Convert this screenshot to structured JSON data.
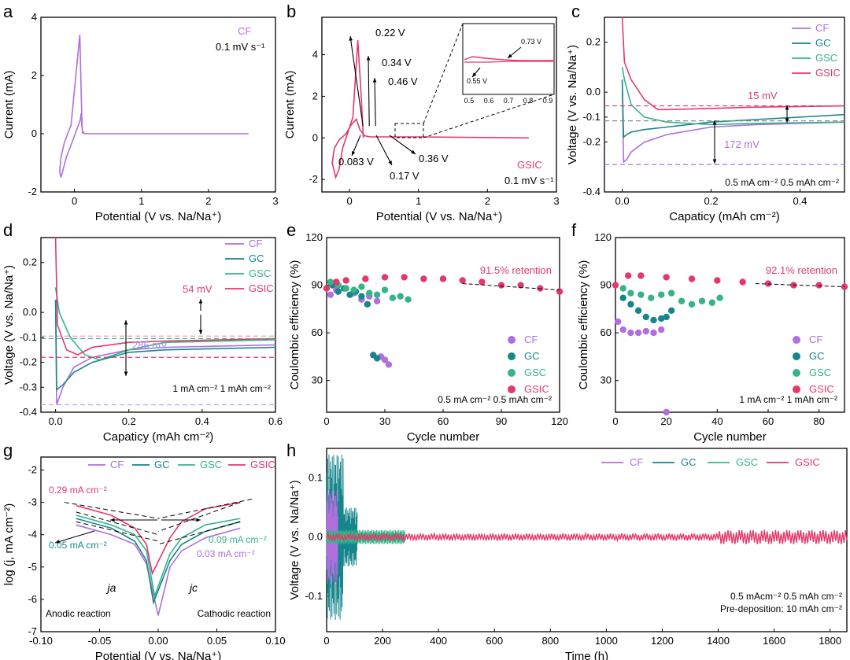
{
  "colors": {
    "CF": "#b06ee0",
    "GC": "#16868c",
    "GSC": "#35b488",
    "GSIC": "#e5386a",
    "axis": "#000000",
    "dash": "#000000"
  },
  "chart_data": [
    {
      "panel": "a",
      "type": "line",
      "legend": {
        "label": "CF",
        "rate": "0.1 mV s⁻¹"
      },
      "xlabel": "Potential (V vs. Na/Na⁺)",
      "ylabel": "Current (mA)",
      "xlim": [
        -0.5,
        3
      ],
      "ylim": [
        -2,
        4
      ],
      "xticks": [
        "0",
        "1",
        "2",
        "3"
      ],
      "yticks": [
        "-2",
        "0",
        "2",
        "4"
      ],
      "series": [
        {
          "name": "CF",
          "x": [
            0.12,
            0.11,
            0.1,
            0.08,
            -0.05,
            -0.15,
            -0.2,
            -0.22,
            -0.2,
            -0.12,
            -0.02,
            0.06,
            0.09,
            0.1,
            0.11,
            0.12,
            0.15,
            0.3,
            1,
            2,
            2.6
          ],
          "y": [
            0,
            0.6,
            1.5,
            3.4,
            0.3,
            -0.3,
            -0.8,
            -1.3,
            -1.5,
            -0.8,
            -0.2,
            0.3,
            0.5,
            0.7,
            0.3,
            0.1,
            0,
            0,
            0,
            0,
            0
          ]
        }
      ]
    },
    {
      "panel": "b",
      "type": "line",
      "legend": {
        "label": "GSIC",
        "rate": "0.1 mV s⁻¹"
      },
      "xlabel": "Potential (V vs. Na/Na⁺)",
      "ylabel": "Current (mA)",
      "xlim": [
        -0.4,
        3
      ],
      "ylim": [
        -2.6,
        5.8
      ],
      "xticks": [
        "0",
        "1",
        "2",
        "3"
      ],
      "yticks": [
        "-2",
        "0",
        "2",
        "4"
      ],
      "annotations": [
        "0.22 V",
        "0.34 V",
        "0.46 V",
        "0.083 V",
        "0.17 V",
        "0.36 V"
      ],
      "inset": {
        "xticks": [
          "0.5",
          "0.6",
          "0.7",
          "0.8",
          "0.9"
        ],
        "labels": [
          "0.73 V",
          "0.55 V"
        ]
      },
      "series": [
        {
          "name": "GSIC",
          "x": [
            0.2,
            0.17,
            0.12,
            0.05,
            -0.05,
            -0.1,
            -0.15,
            -0.2,
            -0.25,
            -0.22,
            -0.15,
            -0.05,
            0.02,
            0.1,
            0.15,
            0.22,
            0.3,
            1,
            2,
            2.6
          ],
          "y": [
            0,
            2,
            4.7,
            1,
            0,
            -0.5,
            -1.5,
            -1.9,
            -1.2,
            -0.5,
            -0.1,
            0.2,
            0.6,
            0.9,
            0.4,
            0.1,
            0.05,
            0.05,
            0.02,
            0
          ]
        }
      ]
    },
    {
      "panel": "c",
      "type": "line",
      "xlabel": "Capaticy (mAh cm⁻²)",
      "ylabel": "Voltage (V vs. Na/Na⁺)",
      "xlim": [
        -0.04,
        0.5
      ],
      "ylim": [
        -0.4,
        0.3
      ],
      "xticks": [
        "0.0",
        "0.2",
        "0.4"
      ],
      "yticks": [
        "-0.4",
        "-0.2",
        "-0.1",
        "0.0",
        "0.2"
      ],
      "legend": [
        "CF",
        "GC",
        "GSC",
        "GSIC"
      ],
      "annotations": [
        "15 mV",
        "172 mV"
      ],
      "conditions": "0.5 mA cm⁻² 0.5 mAh cm⁻²",
      "series": [
        {
          "name": "CF",
          "x": [
            0,
            0.003,
            0.01,
            0.02,
            0.05,
            0.1,
            0.2,
            0.3,
            0.5
          ],
          "y": [
            0.05,
            -0.28,
            -0.27,
            -0.24,
            -0.2,
            -0.17,
            -0.14,
            -0.13,
            -0.12
          ]
        },
        {
          "name": "GC",
          "x": [
            0,
            0.003,
            0.01,
            0.02,
            0.05,
            0.1,
            0.2,
            0.3,
            0.5
          ],
          "y": [
            0.05,
            -0.18,
            -0.17,
            -0.16,
            -0.15,
            -0.14,
            -0.12,
            -0.11,
            -0.09
          ]
        },
        {
          "name": "GSC",
          "x": [
            0,
            0.005,
            0.02,
            0.05,
            0.1,
            0.2,
            0.3,
            0.5
          ],
          "y": [
            0.1,
            0.05,
            -0.05,
            -0.1,
            -0.12,
            -0.13,
            -0.125,
            -0.12
          ]
        },
        {
          "name": "GSIC",
          "x": [
            0,
            0.005,
            0.02,
            0.05,
            0.08,
            0.1,
            0.2,
            0.3,
            0.5
          ],
          "y": [
            0.3,
            0.12,
            0.05,
            -0.03,
            -0.07,
            -0.07,
            -0.065,
            -0.06,
            -0.055
          ]
        }
      ]
    },
    {
      "panel": "d",
      "type": "line",
      "xlabel": "Capaticy (mAh cm⁻²)",
      "ylabel": "Voltage (V vs. Na/Na⁺)",
      "xlim": [
        -0.04,
        0.6
      ],
      "ylim": [
        -0.4,
        0.3
      ],
      "xticks": [
        "0.0",
        "0.2",
        "0.4",
        "0.6"
      ],
      "yticks": [
        "-0.4",
        "-0.3",
        "-0.2",
        "-0.1",
        "0.0",
        "0.2"
      ],
      "legend": [
        "CF",
        "GC",
        "GSC",
        "GSIC"
      ],
      "annotations": [
        "54 mV",
        "286 mV"
      ],
      "conditions": "1 mA cm⁻² 1 mAh cm⁻²",
      "series": [
        {
          "name": "CF",
          "x": [
            0,
            0.003,
            0.02,
            0.05,
            0.1,
            0.2,
            0.3,
            0.6
          ],
          "y": [
            0.05,
            -0.37,
            -0.3,
            -0.22,
            -0.18,
            -0.15,
            -0.14,
            -0.13
          ]
        },
        {
          "name": "GC",
          "x": [
            0,
            0.003,
            0.02,
            0.05,
            0.1,
            0.2,
            0.3,
            0.6
          ],
          "y": [
            0.05,
            -0.31,
            -0.29,
            -0.24,
            -0.2,
            -0.16,
            -0.15,
            -0.14
          ]
        },
        {
          "name": "GSC",
          "x": [
            0,
            0.01,
            0.04,
            0.08,
            0.12,
            0.2,
            0.3,
            0.6
          ],
          "y": [
            0.1,
            0.0,
            -0.1,
            -0.17,
            -0.19,
            -0.15,
            -0.12,
            -0.11
          ]
        },
        {
          "name": "GSIC",
          "x": [
            0,
            0.005,
            0.03,
            0.06,
            0.1,
            0.2,
            0.3,
            0.6
          ],
          "y": [
            0.3,
            -0.05,
            -0.15,
            -0.17,
            -0.14,
            -0.12,
            -0.115,
            -0.105
          ]
        }
      ]
    },
    {
      "panel": "e",
      "type": "scatter",
      "xlabel": "Cycle number",
      "ylabel": "Coulombic efficiency (%)",
      "xlim": [
        0,
        120
      ],
      "ylim": [
        10,
        120
      ],
      "xticks": [
        "0",
        "30",
        "60",
        "90",
        "120"
      ],
      "yticks": [
        "30",
        "60",
        "90",
        "120"
      ],
      "legend": [
        "CF",
        "GC",
        "GSC",
        "GSIC"
      ],
      "annotations": [
        "91.5% retention"
      ],
      "conditions": "0.5 mA cm⁻² 0.5 mAh cm⁻²",
      "series": [
        {
          "name": "CF",
          "x": [
            2,
            5,
            10,
            14,
            18,
            22,
            26,
            28,
            30,
            32
          ],
          "y": [
            84,
            87,
            88,
            85,
            81,
            83,
            80,
            45,
            43,
            40
          ]
        },
        {
          "name": "GC",
          "x": [
            3,
            6,
            9,
            12,
            15,
            18,
            21,
            24,
            26
          ],
          "y": [
            90,
            86,
            88,
            84,
            86,
            83,
            78,
            46,
            44
          ]
        },
        {
          "name": "GSC",
          "x": [
            2,
            6,
            10,
            14,
            18,
            22,
            26,
            30,
            34,
            38,
            42
          ],
          "y": [
            92,
            90,
            88,
            87,
            89,
            85,
            84,
            87,
            82,
            83,
            81
          ]
        },
        {
          "name": "GSIC",
          "x": [
            0,
            5,
            10,
            20,
            30,
            40,
            50,
            60,
            70,
            80,
            90,
            100,
            110,
            120
          ],
          "y": [
            88,
            92,
            93,
            94,
            95,
            95,
            94,
            94,
            93,
            92,
            90,
            90,
            88,
            86
          ]
        }
      ]
    },
    {
      "panel": "f",
      "type": "scatter",
      "xlabel": "Cycle number",
      "ylabel": "Coulombic efficiency (%)",
      "xlim": [
        0,
        90
      ],
      "ylim": [
        10,
        120
      ],
      "xticks": [
        "0",
        "20",
        "40",
        "60",
        "80"
      ],
      "yticks": [
        "30",
        "60",
        "90",
        "120"
      ],
      "legend": [
        "CF",
        "GC",
        "GSC",
        "GSIC"
      ],
      "annotations": [
        "92.1% retention"
      ],
      "conditions": "1 mA cm⁻² 1 mAh cm⁻²",
      "series": [
        {
          "name": "CF",
          "x": [
            1,
            3,
            6,
            9,
            12,
            15,
            18,
            20
          ],
          "y": [
            67,
            62,
            60,
            60,
            61,
            60,
            62,
            10
          ]
        },
        {
          "name": "GC",
          "x": [
            3,
            6,
            9,
            12,
            15,
            18,
            20,
            22
          ],
          "y": [
            82,
            78,
            74,
            70,
            68,
            69,
            70,
            74
          ]
        },
        {
          "name": "GSC",
          "x": [
            3,
            6,
            10,
            14,
            18,
            22,
            26,
            30,
            34,
            38,
            41
          ],
          "y": [
            88,
            85,
            84,
            82,
            84,
            85,
            80,
            78,
            80,
            79,
            82
          ]
        },
        {
          "name": "GSIC",
          "x": [
            0,
            5,
            10,
            20,
            30,
            40,
            50,
            60,
            70,
            80,
            90
          ],
          "y": [
            90,
            96,
            96,
            95,
            94,
            93,
            92,
            91,
            90,
            90,
            89
          ]
        }
      ]
    },
    {
      "panel": "g",
      "type": "line",
      "xlabel": "Potential (V vs. Na/Na⁺)",
      "ylabel": "log (j, mA cm⁻²)",
      "xlim": [
        -0.1,
        0.1
      ],
      "ylim": [
        -7,
        -1.6
      ],
      "xticks": [
        "-0.10",
        "-0.05",
        "0.00",
        "0.05",
        "0.10"
      ],
      "yticks": [
        "-7",
        "-6",
        "-5",
        "-4",
        "-3",
        "-2"
      ],
      "legend": [
        "CF",
        "GC",
        "GSC",
        "GSIC"
      ],
      "annotations": [
        "0.29 mA cm⁻²",
        "0.05 mA cm⁻²",
        "0.09 mA cm⁻²",
        "0.03 mA cm⁻²",
        "ja",
        "jc",
        "Anodic reaction",
        "Cathodic reaction"
      ],
      "series": [
        {
          "name": "CF",
          "x": [
            -0.07,
            -0.04,
            -0.02,
            -0.01,
            0,
            0.01,
            0.02,
            0.04,
            0.07
          ],
          "y": [
            -3.7,
            -4.0,
            -4.3,
            -4.9,
            -6.5,
            -5.0,
            -4.5,
            -4.1,
            -3.8
          ]
        },
        {
          "name": "GC",
          "x": [
            -0.07,
            -0.04,
            -0.02,
            -0.01,
            -0.004,
            0.01,
            0.02,
            0.04,
            0.07
          ],
          "y": [
            -3.5,
            -3.8,
            -4.2,
            -4.8,
            -6.1,
            -4.8,
            -4.3,
            -3.9,
            -3.6
          ]
        },
        {
          "name": "GSC",
          "x": [
            -0.07,
            -0.04,
            -0.02,
            -0.01,
            -0.003,
            0.01,
            0.02,
            0.04,
            0.07
          ],
          "y": [
            -3.4,
            -3.7,
            -4.0,
            -4.5,
            -5.9,
            -4.6,
            -4.1,
            -3.7,
            -3.5
          ]
        },
        {
          "name": "GSIC",
          "x": [
            -0.07,
            -0.04,
            -0.02,
            -0.01,
            -0.005,
            0.01,
            0.02,
            0.04,
            0.07
          ],
          "y": [
            -3.1,
            -3.4,
            -3.8,
            -4.3,
            -5.2,
            -4.1,
            -3.6,
            -3.2,
            -3.0
          ]
        }
      ]
    },
    {
      "panel": "h",
      "type": "line",
      "xlabel": "Time (h)",
      "ylabel": "Voltage (V vs. Na/Na⁺)",
      "xlim": [
        0,
        1860
      ],
      "ylim": [
        -0.16,
        0.15
      ],
      "xticks": [
        "0",
        "200",
        "400",
        "600",
        "800",
        "1000",
        "1200",
        "1400",
        "1600",
        "1800"
      ],
      "yticks": [
        "-0.1",
        "0.0",
        "0.1"
      ],
      "legend": [
        "CF",
        "GC",
        "GSC",
        "GSIC"
      ],
      "conditions": [
        "0.5 mAcm⁻² 0.5 mAh cm⁻²",
        "Pre-deposition: 10 mAh cm⁻²"
      ],
      "series": [
        {
          "name": "CF",
          "t_end": 40,
          "amplitude": 0.08
        },
        {
          "name": "GC",
          "t_end": 110,
          "amplitude": 0.14
        },
        {
          "name": "GSC",
          "t_end": 280,
          "amplitude": 0.012
        },
        {
          "name": "GSIC",
          "t_end": 1860,
          "amplitude": 0.006
        }
      ]
    }
  ]
}
